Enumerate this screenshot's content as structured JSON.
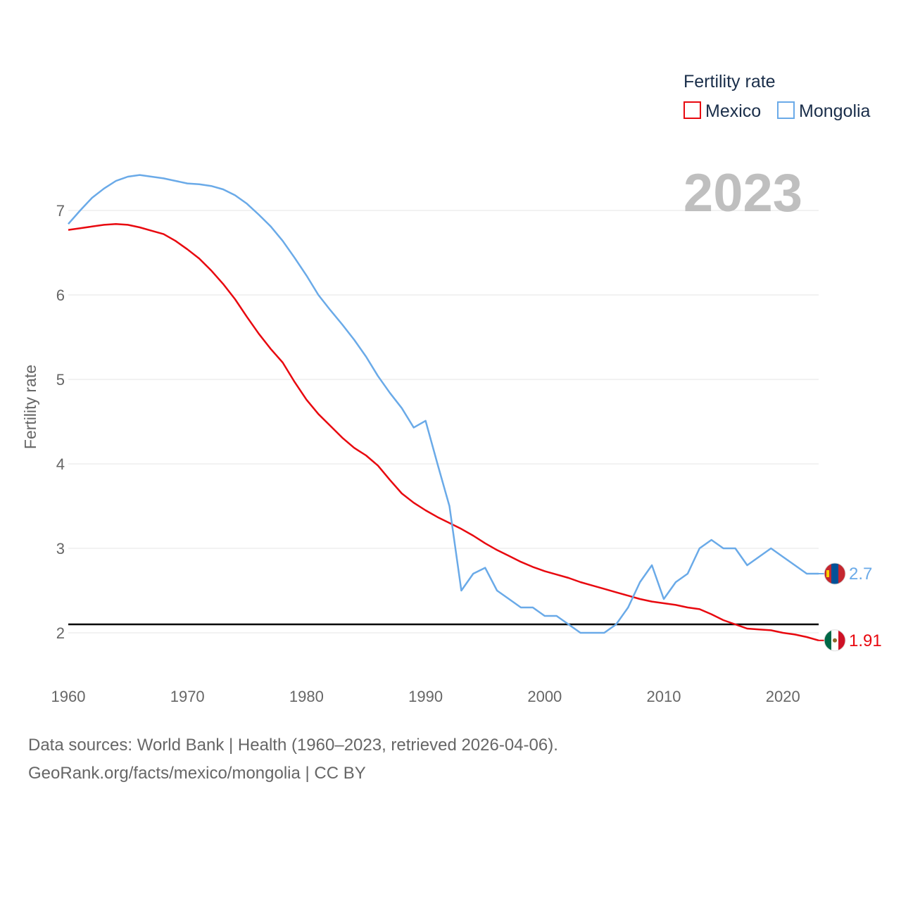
{
  "chart_data": {
    "type": "line",
    "title": "",
    "xlabel": "",
    "ylabel": "Fertility rate",
    "xlim": [
      1960,
      2023
    ],
    "ylim": [
      1.5,
      7.8
    ],
    "xticks": [
      1960,
      1970,
      1980,
      1990,
      2000,
      2010,
      2020
    ],
    "yticks": [
      2,
      3,
      4,
      5,
      6,
      7
    ],
    "current_year": "2023",
    "legend": {
      "title": "Fertility rate",
      "position": "top-right"
    },
    "reference_line": {
      "y": 2.1,
      "color": "#000000"
    },
    "x": [
      1960,
      1961,
      1962,
      1963,
      1964,
      1965,
      1966,
      1967,
      1968,
      1969,
      1970,
      1971,
      1972,
      1973,
      1974,
      1975,
      1976,
      1977,
      1978,
      1979,
      1980,
      1981,
      1982,
      1983,
      1984,
      1985,
      1986,
      1987,
      1988,
      1989,
      1990,
      1991,
      1992,
      1993,
      1994,
      1995,
      1996,
      1997,
      1998,
      1999,
      2000,
      2001,
      2002,
      2003,
      2004,
      2005,
      2006,
      2007,
      2008,
      2009,
      2010,
      2011,
      2012,
      2013,
      2014,
      2015,
      2016,
      2017,
      2018,
      2019,
      2020,
      2021,
      2022,
      2023
    ],
    "series": [
      {
        "name": "Mexico",
        "color": "#e8080f",
        "end_label": "1.91",
        "flag": "mexico-flag",
        "values": [
          6.77,
          6.79,
          6.81,
          6.83,
          6.84,
          6.83,
          6.8,
          6.76,
          6.72,
          6.64,
          6.54,
          6.43,
          6.29,
          6.13,
          5.95,
          5.74,
          5.54,
          5.36,
          5.2,
          4.97,
          4.76,
          4.59,
          4.45,
          4.31,
          4.19,
          4.1,
          3.98,
          3.81,
          3.65,
          3.54,
          3.45,
          3.37,
          3.3,
          3.23,
          3.15,
          3.06,
          2.98,
          2.91,
          2.84,
          2.78,
          2.73,
          2.69,
          2.65,
          2.6,
          2.56,
          2.52,
          2.48,
          2.44,
          2.4,
          2.37,
          2.35,
          2.33,
          2.3,
          2.28,
          2.22,
          2.15,
          2.1,
          2.05,
          2.04,
          2.03,
          2.0,
          1.98,
          1.95,
          1.91
        ]
      },
      {
        "name": "Mongolia",
        "color": "#6aaae8",
        "end_label": "2.7",
        "flag": "mongolia-flag",
        "values": [
          6.84,
          7.0,
          7.15,
          7.26,
          7.35,
          7.4,
          7.42,
          7.4,
          7.38,
          7.35,
          7.32,
          7.31,
          7.29,
          7.25,
          7.18,
          7.08,
          6.95,
          6.81,
          6.64,
          6.44,
          6.23,
          6.0,
          5.82,
          5.65,
          5.47,
          5.27,
          5.04,
          4.84,
          4.66,
          4.43,
          4.51,
          4.0,
          3.5,
          2.5,
          2.7,
          2.77,
          2.5,
          2.4,
          2.3,
          2.3,
          2.2,
          2.2,
          2.1,
          2.0,
          2.0,
          2.0,
          2.1,
          2.3,
          2.6,
          2.8,
          2.4,
          2.6,
          2.7,
          3.0,
          3.1,
          3.0,
          3.0,
          2.8,
          2.9,
          3.0,
          2.9,
          2.8,
          2.7,
          2.7
        ]
      }
    ]
  },
  "footer": {
    "line1": "Data sources: World Bank | Health (1960–2023, retrieved 2026-04-06).",
    "line2": "GeoRank.org/facts/mexico/mongolia | CC BY"
  }
}
